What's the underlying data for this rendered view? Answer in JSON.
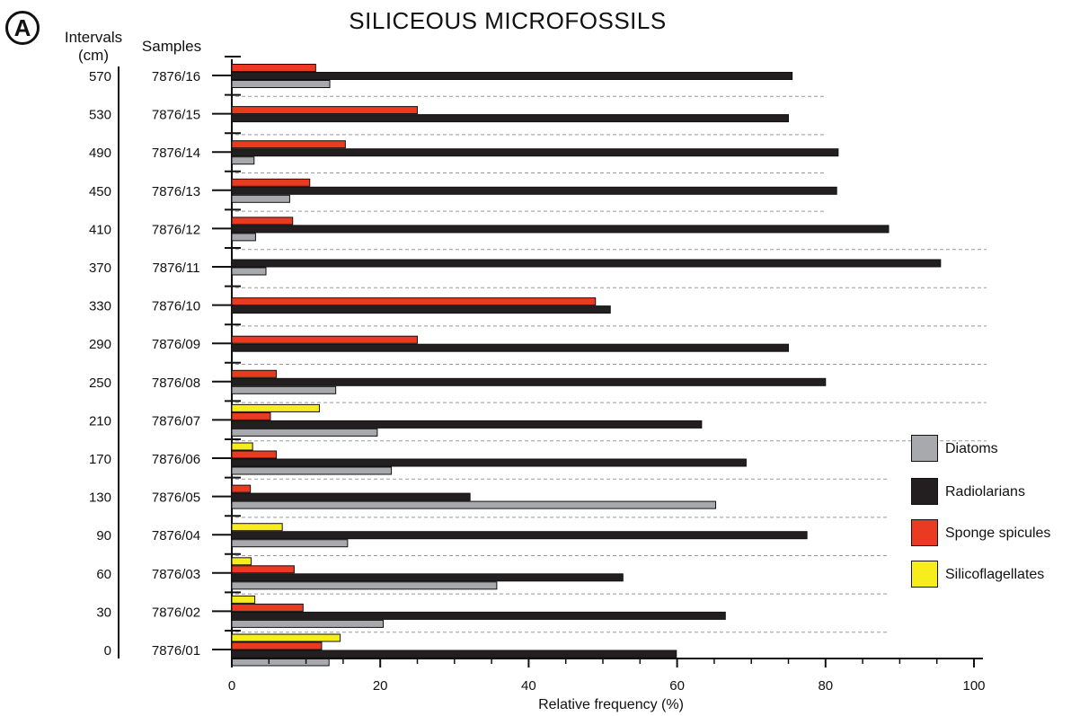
{
  "panel_letter": "A",
  "chart_data": {
    "type": "bar",
    "orientation": "horizontal",
    "title": "SILICEOUS MICROFOSSILS",
    "xlabel": "Relative frequency (%)",
    "xlim": [
      0,
      100
    ],
    "x_ticks": [
      "0",
      "20",
      "40",
      "60",
      "80",
      "100"
    ],
    "interval_header": [
      "Intervals",
      "(cm)"
    ],
    "sample_header": "Samples",
    "intervals": [
      "570",
      "530",
      "490",
      "450",
      "410",
      "370",
      "330",
      "290",
      "250",
      "210",
      "170",
      "130",
      "90",
      "60",
      "30",
      "0"
    ],
    "categories": [
      "7876/16",
      "7876/15",
      "7876/14",
      "7876/13",
      "7876/12",
      "7876/11",
      "7876/10",
      "7876/09",
      "7876/08",
      "7876/07",
      "7876/06",
      "7876/05",
      "7876/04",
      "7876/03",
      "7876/02",
      "7876/01"
    ],
    "series": [
      {
        "name": "Silicoflagellates",
        "color": "#f7ec1c",
        "values": [
          0,
          0,
          0,
          0,
          0,
          0,
          0,
          0,
          0,
          11.8,
          2.8,
          0,
          6.8,
          2.6,
          3.1,
          14.6
        ]
      },
      {
        "name": "Sponge spicules",
        "color": "#ea3a22",
        "values": [
          11.3,
          25,
          15.3,
          10.5,
          8.2,
          0,
          49,
          25,
          6,
          5.2,
          6,
          2.5,
          0,
          8.4,
          9.6,
          12.1
        ]
      },
      {
        "name": "Radiolarians",
        "color": "#231f20",
        "values": [
          75.5,
          75,
          81.7,
          81.5,
          88.5,
          95.5,
          51,
          75,
          80,
          63.3,
          69.3,
          32.1,
          77.5,
          52.7,
          66.5,
          59.9
        ]
      },
      {
        "name": "Diatoms",
        "color": "#a7a9ac",
        "values": [
          13.2,
          0,
          3,
          7.8,
          3.2,
          4.6,
          0,
          0,
          14,
          19.6,
          21.5,
          65.2,
          15.6,
          35.7,
          20.4,
          13.1
        ]
      }
    ],
    "legend": {
      "placement": "right",
      "entries": [
        {
          "name": "Diatoms",
          "color": "#a7a9ac"
        },
        {
          "name": "Radiolarians",
          "color": "#231f20"
        },
        {
          "name": "Sponge spicules",
          "color": "#ea3a22"
        },
        {
          "name": "Silicoflagellates",
          "color": "#f7ec1c"
        }
      ]
    }
  }
}
